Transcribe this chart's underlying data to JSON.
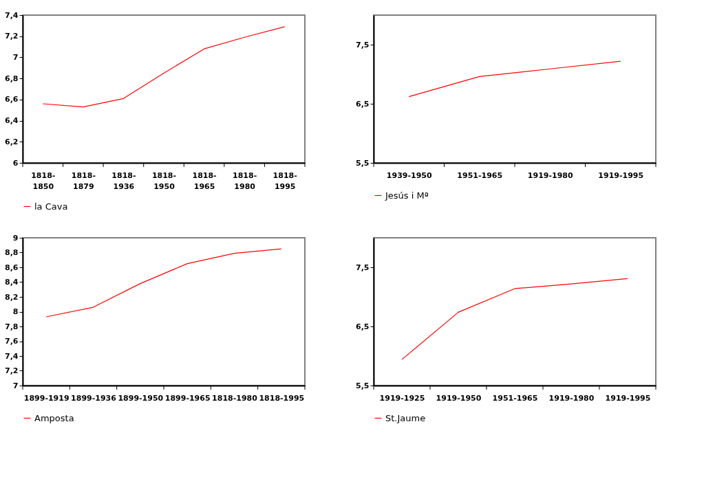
{
  "chart_data": [
    {
      "type": "line",
      "categories": [
        "1818-1850",
        "1818-1879",
        "1818-1936",
        "1818-1950",
        "1818-1965",
        "1818-1980",
        "1818-1995"
      ],
      "series": [
        {
          "name": "la Cava",
          "color": "#ff0000",
          "values": [
            6.56,
            6.53,
            6.61,
            6.85,
            7.08,
            7.19,
            7.29
          ]
        }
      ],
      "ylim": [
        6,
        7.4
      ],
      "yticks": [
        6,
        {
          "value": 6.2,
          "label": "6,2"
        },
        {
          "value": 6.4,
          "label": "6,4"
        },
        {
          "value": 6.6,
          "label": "6,6"
        },
        {
          "value": 6.8,
          "label": "6,8"
        },
        7,
        {
          "value": 7.2,
          "label": "7,2"
        },
        {
          "value": 7.4,
          "label": "7,4"
        }
      ],
      "legend": "bottom"
    },
    {
      "type": "line",
      "categories": [
        "1939-1950",
        "1951-1965",
        "1919-1980",
        "1919-1995"
      ],
      "series": [
        {
          "name": "Jesús i Mª",
          "color": "#ff0000",
          "values": [
            6.62,
            6.96,
            7.09,
            7.22
          ]
        }
      ],
      "ylim": [
        5.5,
        8.0
      ],
      "yticks": [
        {
          "value": 5.5,
          "label": "5,5"
        },
        {
          "value": 6.5,
          "label": "6,5"
        },
        {
          "value": 7.5,
          "label": "7,5"
        }
      ],
      "legend": "bottom"
    },
    {
      "type": "line",
      "categories": [
        "1899-1919",
        "1899-1936",
        "1899-1950",
        "1899-1965",
        "1818-1980",
        "1818-1995"
      ],
      "series": [
        {
          "name": "Amposta",
          "color": "#ff0000",
          "values": [
            7.93,
            8.06,
            8.38,
            8.65,
            8.79,
            8.85
          ]
        }
      ],
      "ylim": [
        7,
        9
      ],
      "yticks": [
        7,
        {
          "value": 7.2,
          "label": "7,2"
        },
        {
          "value": 7.4,
          "label": "7,4"
        },
        {
          "value": 7.6,
          "label": "7,6"
        },
        {
          "value": 7.8,
          "label": "7,8"
        },
        8,
        {
          "value": 8.2,
          "label": "8,2"
        },
        {
          "value": 8.4,
          "label": "8,4"
        },
        {
          "value": 8.6,
          "label": "8,6"
        },
        {
          "value": 8.8,
          "label": "8,8"
        },
        9
      ],
      "legend": "bottom"
    },
    {
      "type": "line",
      "categories": [
        "1919-1925",
        "1919-1950",
        "1951-1965",
        "1919-1980",
        "1919-1995"
      ],
      "series": [
        {
          "name": "St.Jaume",
          "color": "#ff0000",
          "values": [
            5.94,
            6.74,
            7.14,
            7.22,
            7.31
          ]
        }
      ],
      "ylim": [
        5.5,
        8.0
      ],
      "yticks": [
        {
          "value": 5.5,
          "label": "5,5"
        },
        {
          "value": 6.5,
          "label": "6,5"
        },
        {
          "value": 7.5,
          "label": "7,5"
        }
      ],
      "legend": "bottom"
    }
  ]
}
